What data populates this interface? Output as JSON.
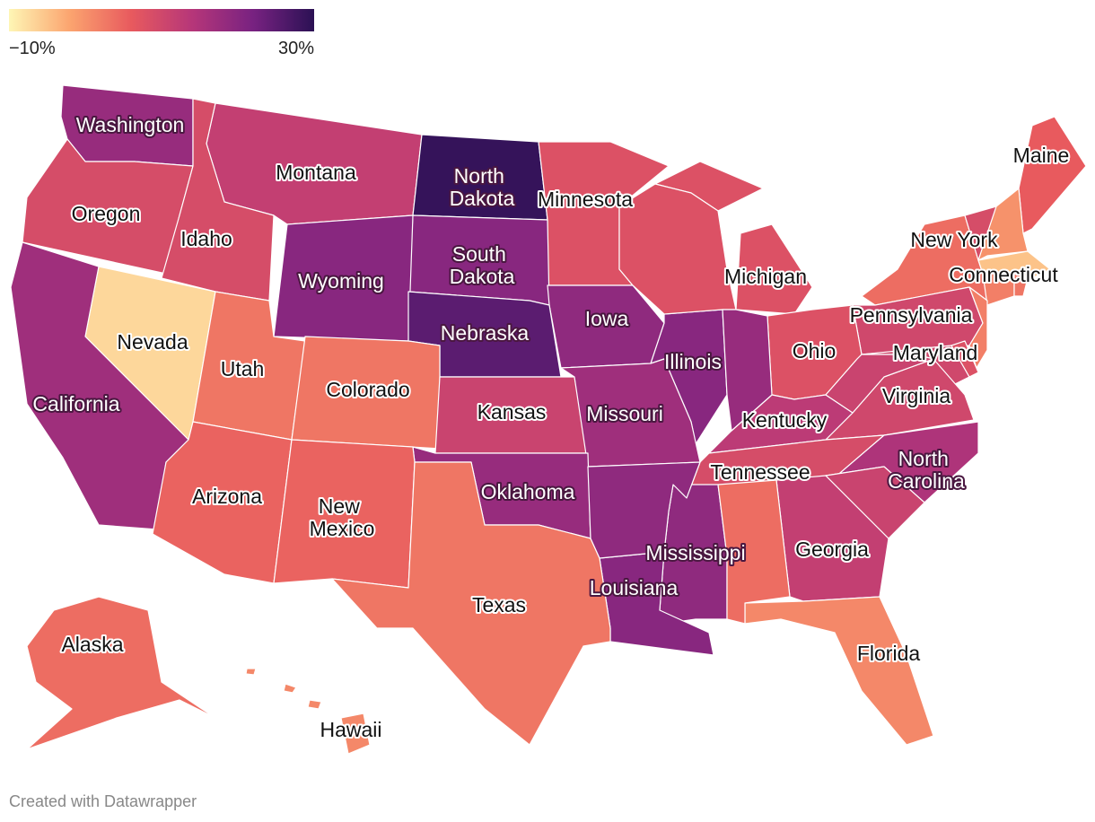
{
  "chart_data": {
    "type": "choropleth",
    "footer": "Created with Datawrapper",
    "clim": [
      -10,
      30
    ],
    "cticks": [
      {
        "value": -10,
        "label": "−10%"
      },
      {
        "value": 30,
        "label": "30%"
      }
    ],
    "colorscale": [
      "#fef6b5",
      "#fba46f",
      "#e85a5e",
      "#b63679",
      "#782281",
      "#2b1154"
    ],
    "categories": [
      "Washington",
      "Montana",
      "North Dakota",
      "Minnesota",
      "Maine",
      "Oregon",
      "Idaho",
      "South Dakota",
      "Wyoming",
      "New York",
      "Connecticut",
      "Michigan",
      "Nevada",
      "Iowa",
      "Nebraska",
      "Pennsylvania",
      "Ohio",
      "Utah",
      "Illinois",
      "Maryland",
      "Colorado",
      "California",
      "Kansas",
      "Missouri",
      "Virginia",
      "Kentucky",
      "Tennessee",
      "North Carolina",
      "Oklahoma",
      "Arizona",
      "New Mexico",
      "Mississippi",
      "Georgia",
      "Louisiana",
      "Texas",
      "Florida",
      "Alaska",
      "Hawaii",
      null,
      null,
      null,
      null,
      null,
      null,
      null,
      null,
      null,
      null,
      null,
      null
    ],
    "values": [
      18,
      12,
      29,
      8,
      6,
      9,
      9,
      20,
      20,
      4,
      2,
      8,
      -7,
      19,
      25,
      10,
      8,
      3,
      20,
      10,
      3,
      17,
      11,
      17,
      10,
      13,
      9,
      15,
      18,
      5,
      5,
      19,
      12,
      20,
      3,
      1,
      4,
      1,
      8,
      18,
      11,
      11,
      4,
      19,
      9,
      0,
      -5,
      3,
      2,
      8
    ]
  }
}
